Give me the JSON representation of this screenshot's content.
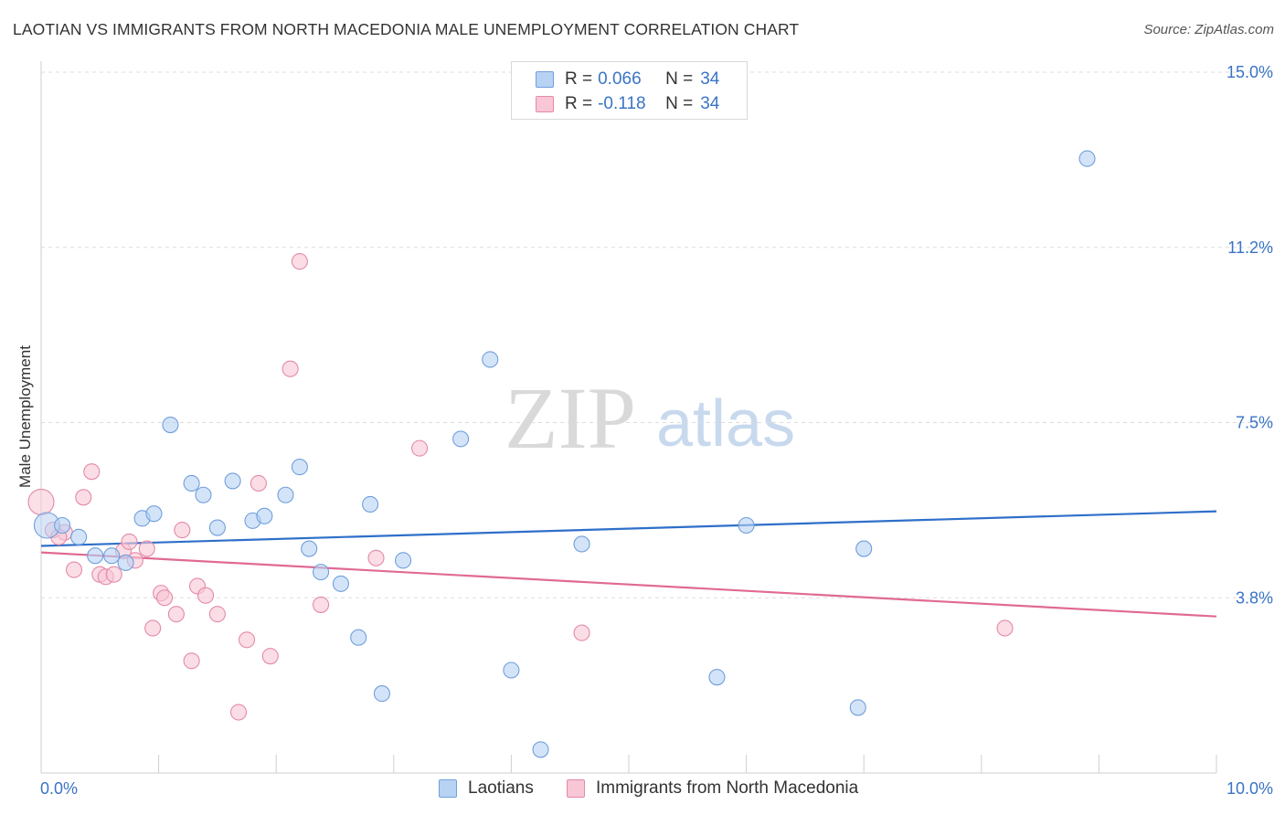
{
  "header": {
    "title": "LAOTIAN VS IMMIGRANTS FROM NORTH MACEDONIA MALE UNEMPLOYMENT CORRELATION CHART",
    "source": "Source: ZipAtlas.com"
  },
  "watermark": {
    "zip": "ZIP",
    "atlas": "atlas"
  },
  "legend": {
    "rows": [
      {
        "r_label": "R =",
        "r_value": "0.066",
        "n_label": "N =",
        "n_value": "34"
      },
      {
        "r_label": "R =",
        "r_value": "-0.118",
        "n_label": "N =",
        "n_value": "34"
      }
    ]
  },
  "bottom_legend": {
    "laotians": "Laotians",
    "macedonia": "Immigrants from North Macedonia"
  },
  "colors": {
    "laotians_fill": "#b8d2f3",
    "laotians_stroke": "#6f9fdc",
    "laotians_line": "#2e6fc9",
    "macedonia_fill": "#f8c6d5",
    "macedonia_stroke": "#e38aa8",
    "macedonia_line": "#e06a94",
    "tick_text": "#3a74c4",
    "grid": "#dddddd"
  },
  "chart_data": {
    "type": "scatter",
    "title": "LAOTIAN VS IMMIGRANTS FROM NORTH MACEDONIA MALE UNEMPLOYMENT CORRELATION CHART",
    "xlabel": "",
    "ylabel": "Male Unemployment",
    "xlim": [
      0,
      10
    ],
    "ylim": [
      0,
      15
    ],
    "x_tick_labels": [
      {
        "value": 0,
        "label": "0.0%"
      },
      {
        "value": 10,
        "label": "10.0%"
      }
    ],
    "y_tick_labels": [
      {
        "value": 3.75,
        "label": "3.8%"
      },
      {
        "value": 7.5,
        "label": "7.5%"
      },
      {
        "value": 11.25,
        "label": "11.2%"
      },
      {
        "value": 15,
        "label": "15.0%"
      }
    ],
    "grid": true,
    "legend_position": "top-center",
    "series": [
      {
        "name": "Laotians",
        "trend": {
          "x": [
            0,
            10
          ],
          "y": [
            4.86,
            5.6
          ]
        },
        "points": [
          {
            "x": 0.05,
            "y": 5.3,
            "big": true
          },
          {
            "x": 0.18,
            "y": 5.3
          },
          {
            "x": 0.32,
            "y": 5.05
          },
          {
            "x": 0.46,
            "y": 4.65
          },
          {
            "x": 0.6,
            "y": 4.65
          },
          {
            "x": 0.72,
            "y": 4.5
          },
          {
            "x": 0.86,
            "y": 5.45
          },
          {
            "x": 0.96,
            "y": 5.55
          },
          {
            "x": 1.1,
            "y": 7.45
          },
          {
            "x": 1.28,
            "y": 6.2
          },
          {
            "x": 1.38,
            "y": 5.95
          },
          {
            "x": 1.5,
            "y": 5.25
          },
          {
            "x": 1.63,
            "y": 6.25
          },
          {
            "x": 1.8,
            "y": 5.4
          },
          {
            "x": 1.9,
            "y": 5.5
          },
          {
            "x": 2.08,
            "y": 5.95
          },
          {
            "x": 2.2,
            "y": 6.55
          },
          {
            "x": 2.28,
            "y": 4.8
          },
          {
            "x": 2.38,
            "y": 4.3
          },
          {
            "x": 2.55,
            "y": 4.05
          },
          {
            "x": 2.7,
            "y": 2.9
          },
          {
            "x": 2.8,
            "y": 5.75
          },
          {
            "x": 2.9,
            "y": 1.7
          },
          {
            "x": 3.08,
            "y": 4.55
          },
          {
            "x": 3.57,
            "y": 7.15
          },
          {
            "x": 3.82,
            "y": 8.85
          },
          {
            "x": 4.0,
            "y": 2.2
          },
          {
            "x": 4.25,
            "y": 0.5
          },
          {
            "x": 4.6,
            "y": 4.9
          },
          {
            "x": 5.75,
            "y": 2.05
          },
          {
            "x": 6.0,
            "y": 5.3
          },
          {
            "x": 6.95,
            "y": 1.4
          },
          {
            "x": 7.0,
            "y": 4.8
          },
          {
            "x": 8.9,
            "y": 13.15
          }
        ]
      },
      {
        "name": "Immigrants from North Macedonia",
        "trend": {
          "x": [
            0,
            10
          ],
          "y": [
            4.72,
            3.35
          ]
        },
        "points": [
          {
            "x": 0.0,
            "y": 5.8,
            "big": true
          },
          {
            "x": 0.1,
            "y": 5.2
          },
          {
            "x": 0.2,
            "y": 5.15
          },
          {
            "x": 0.28,
            "y": 4.35
          },
          {
            "x": 0.36,
            "y": 5.9
          },
          {
            "x": 0.43,
            "y": 6.45
          },
          {
            "x": 0.5,
            "y": 4.25
          },
          {
            "x": 0.55,
            "y": 4.2
          },
          {
            "x": 0.62,
            "y": 4.25
          },
          {
            "x": 0.7,
            "y": 4.75
          },
          {
            "x": 0.8,
            "y": 4.55
          },
          {
            "x": 0.9,
            "y": 4.8
          },
          {
            "x": 0.95,
            "y": 3.1
          },
          {
            "x": 1.02,
            "y": 3.85
          },
          {
            "x": 1.05,
            "y": 3.75
          },
          {
            "x": 1.15,
            "y": 3.4
          },
          {
            "x": 1.2,
            "y": 5.2
          },
          {
            "x": 1.28,
            "y": 2.4
          },
          {
            "x": 1.33,
            "y": 4.0
          },
          {
            "x": 1.4,
            "y": 3.8
          },
          {
            "x": 1.5,
            "y": 3.4
          },
          {
            "x": 1.68,
            "y": 1.3
          },
          {
            "x": 1.75,
            "y": 2.85
          },
          {
            "x": 1.85,
            "y": 6.2
          },
          {
            "x": 1.95,
            "y": 2.5
          },
          {
            "x": 2.12,
            "y": 8.65
          },
          {
            "x": 2.2,
            "y": 10.95
          },
          {
            "x": 2.38,
            "y": 3.6
          },
          {
            "x": 2.85,
            "y": 4.6
          },
          {
            "x": 3.22,
            "y": 6.95
          },
          {
            "x": 4.6,
            "y": 3.0
          },
          {
            "x": 8.2,
            "y": 3.1
          },
          {
            "x": 0.75,
            "y": 4.95
          },
          {
            "x": 0.15,
            "y": 5.05
          }
        ]
      }
    ]
  }
}
